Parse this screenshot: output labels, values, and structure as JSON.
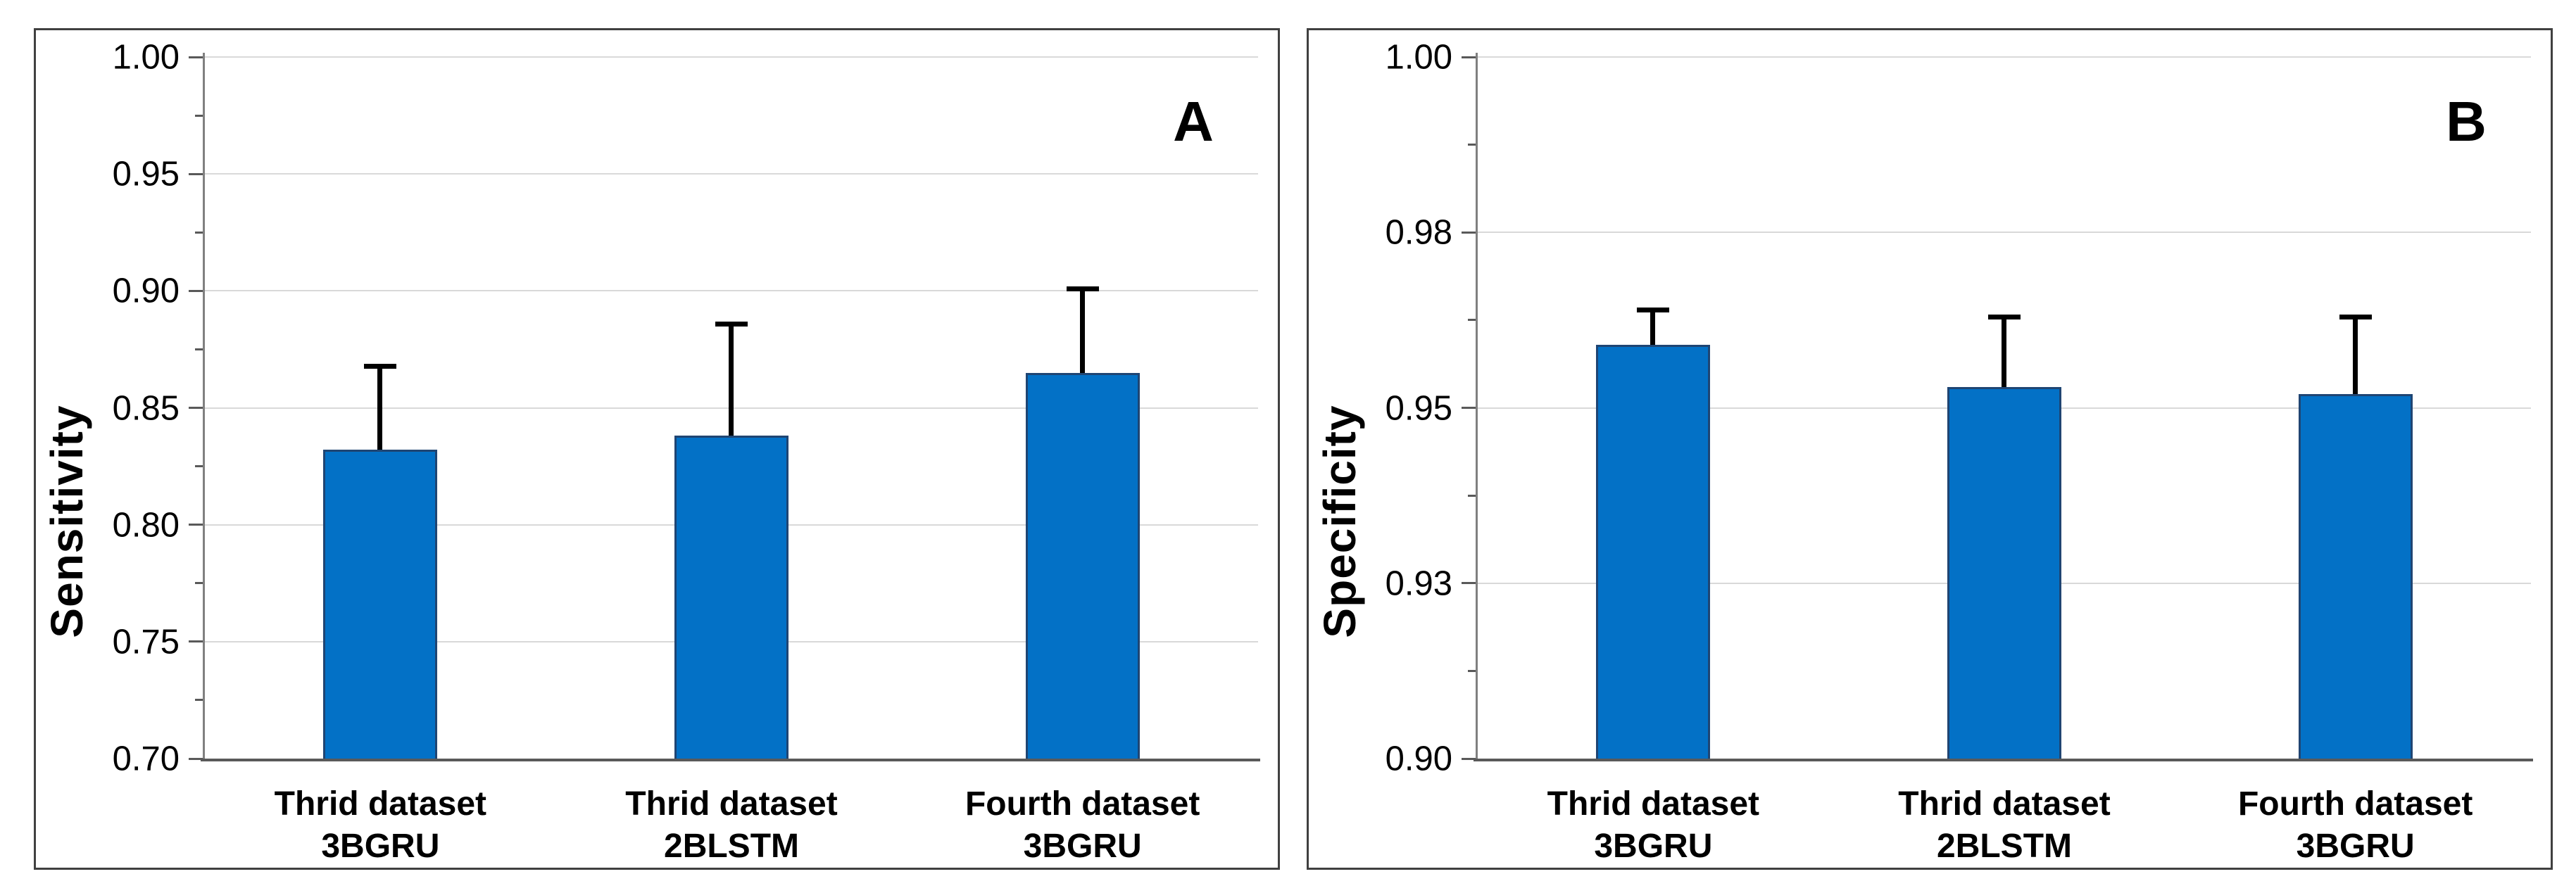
{
  "chart_data": [
    {
      "type": "bar",
      "panel_label": "A",
      "ylabel": "Sensitivity",
      "ylim": [
        0.7,
        1.0
      ],
      "grid": true,
      "legend": null,
      "yticks": [
        {
          "value": 0.7,
          "label": "0.70"
        },
        {
          "value": 0.75,
          "label": "0.75"
        },
        {
          "value": 0.8,
          "label": "0.80"
        },
        {
          "value": 0.85,
          "label": "0.85"
        },
        {
          "value": 0.9,
          "label": "0.90"
        },
        {
          "value": 0.95,
          "label": "0.95"
        },
        {
          "value": 1.0,
          "label": "1.00"
        }
      ],
      "minor_ticks": [
        0.725,
        0.775,
        0.825,
        0.875,
        0.925,
        0.975
      ],
      "categories": [
        [
          "Thrid dataset",
          "3BGRU"
        ],
        [
          "Thrid dataset",
          "2BLSTM"
        ],
        [
          "Fourth dataset",
          "3BGRU"
        ]
      ],
      "values": [
        0.832,
        0.838,
        0.865
      ],
      "error_top": [
        0.868,
        0.886,
        0.901
      ]
    },
    {
      "type": "bar",
      "panel_label": "B",
      "ylabel": "Specificity",
      "ylim": [
        0.9,
        1.0
      ],
      "grid": true,
      "legend": null,
      "yticks": [
        {
          "value": 0.9,
          "label": "0.90"
        },
        {
          "value": 0.925,
          "label": "0.93"
        },
        {
          "value": 0.95,
          "label": "0.95"
        },
        {
          "value": 0.975,
          "label": "0.98"
        },
        {
          "value": 1.0,
          "label": "1.00"
        }
      ],
      "minor_ticks": [
        0.9125,
        0.9375,
        0.9625,
        0.9875
      ],
      "categories": [
        [
          "Thrid dataset",
          "3BGRU"
        ],
        [
          "Thrid dataset",
          "2BLSTM"
        ],
        [
          "Fourth dataset",
          "3BGRU"
        ]
      ],
      "values": [
        0.959,
        0.953,
        0.952
      ],
      "error_top": [
        0.964,
        0.963,
        0.963
      ]
    }
  ],
  "colors": {
    "background": "#FFFFFF",
    "text": "#000000",
    "bar_fill": "#0371C6",
    "bar_border": "#1F4573",
    "error_bar": "#000000",
    "gridline": "#D9D9D9",
    "axis_line": "#808080",
    "baseline": "#595959",
    "panel_border": "#404040"
  }
}
